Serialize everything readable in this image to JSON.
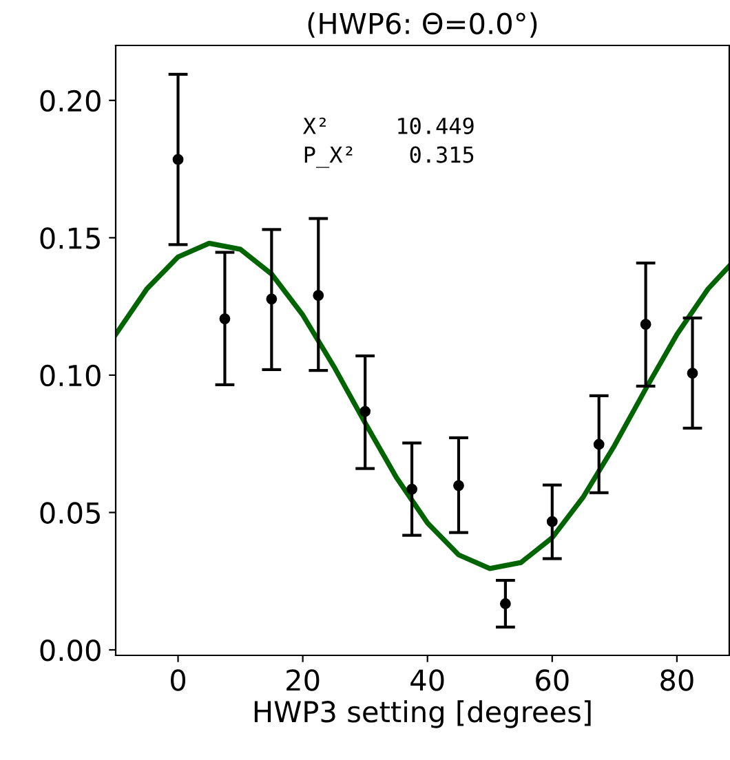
{
  "chart_data": {
    "type": "scatter",
    "title": "(HWP6: Θ=0.0°)",
    "xlabel": "HWP3 setting [degrees]",
    "xlim": [
      -10,
      88.4
    ],
    "xticks": [
      0,
      20,
      40,
      60,
      80
    ],
    "ylim": [
      -0.002,
      0.22
    ],
    "yticks": [
      {
        "value": 0.0,
        "label": "0.00"
      },
      {
        "value": 0.05,
        "label": "0.05"
      },
      {
        "value": 0.1,
        "label": "0.10"
      },
      {
        "value": 0.15,
        "label": "0.15"
      },
      {
        "value": 0.2,
        "label": "0.20"
      }
    ],
    "grid": false,
    "annotations": [
      "X²     10.449",
      "P_X²    0.315"
    ],
    "series": [
      {
        "color": "#000000",
        "marker": "circle",
        "x": [
          0,
          7.5,
          15,
          22.5,
          30,
          37.5,
          45,
          52.5,
          60,
          67.5,
          75,
          82.5
        ],
        "values": [
          0.1785,
          0.1205,
          0.1277,
          0.129,
          0.0868,
          0.0585,
          0.0598,
          0.0168,
          0.0467,
          0.0748,
          0.1185,
          0.1007
        ],
        "errors": [
          [
            0.1475,
            0.2095
          ],
          [
            0.0965,
            0.1447
          ],
          [
            0.102,
            0.153
          ],
          [
            0.1017,
            0.157
          ],
          [
            0.066,
            0.107
          ],
          [
            0.0417,
            0.0753
          ],
          [
            0.0427,
            0.0772
          ],
          [
            0.0083,
            0.0253
          ],
          [
            0.0332,
            0.06
          ],
          [
            0.0572,
            0.0925
          ],
          [
            0.096,
            0.1408
          ],
          [
            0.0807,
            0.1208
          ]
        ]
      },
      {
        "type": "line",
        "color": "#006400",
        "marker": "none",
        "line_style": "solid",
        "x": [
          -10,
          -5,
          0,
          5,
          10,
          15,
          20,
          25,
          30,
          35,
          40,
          45,
          50,
          55,
          60,
          65,
          70,
          75,
          80,
          85,
          88.4
        ],
        "values": [
          0.1148,
          0.1314,
          0.143,
          0.148,
          0.1458,
          0.1368,
          0.1219,
          0.1031,
          0.0826,
          0.0628,
          0.0462,
          0.0346,
          0.0296,
          0.0318,
          0.0408,
          0.0557,
          0.0744,
          0.095,
          0.1148,
          0.1314,
          0.1397
        ]
      }
    ]
  }
}
